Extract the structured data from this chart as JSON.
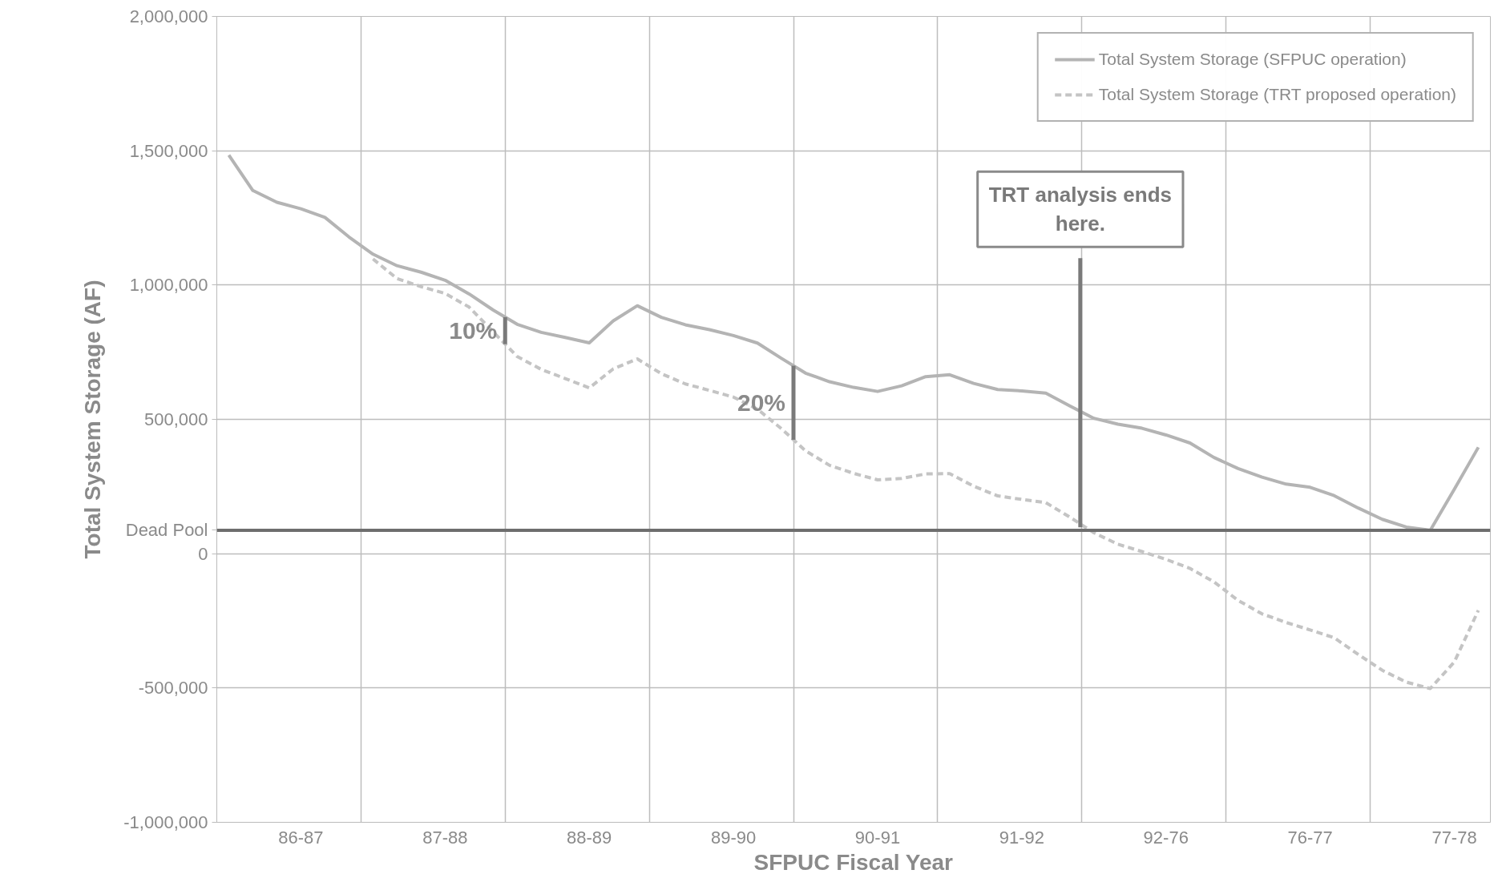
{
  "chart_data": {
    "type": "line",
    "xlabel": "SFPUC Fiscal Year",
    "ylabel": "Total System Storage (AF)",
    "categories": [
      null,
      null,
      null,
      "86-87",
      null,
      null,
      null,
      null,
      null,
      "87-88",
      null,
      null,
      null,
      null,
      null,
      "88-89",
      null,
      null,
      null,
      null,
      null,
      "89-90",
      null,
      null,
      null,
      null,
      null,
      "90-91",
      null,
      null,
      null,
      null,
      null,
      "91-92",
      null,
      null,
      null,
      null,
      null,
      "92-76",
      null,
      null,
      null,
      null,
      null,
      "76-77",
      null,
      null,
      null,
      null,
      null,
      "77-78",
      null
    ],
    "ylim": [
      -1000000,
      2000000
    ],
    "yticks": [
      {
        "value": -1000000,
        "label": "-1,000,000"
      },
      {
        "value": -500000,
        "label": "-500,000"
      },
      {
        "value": 0,
        "label": "0"
      },
      {
        "value": 500000,
        "label": "500,000"
      },
      {
        "value": 1000000,
        "label": "1,000,000"
      },
      {
        "value": 1500000,
        "label": "1,500,000"
      },
      {
        "value": 2000000,
        "label": "2,000,000"
      }
    ],
    "grid": true,
    "legend": "top right",
    "series": [
      {
        "name": "Total System Storage (SFPUC operation)",
        "color": "#b4b4b4",
        "line_style": "solid",
        "values": [
          1484000,
          1352000,
          1308000,
          1284000,
          1252000,
          1179000,
          1115000,
          1072000,
          1048000,
          1018000,
          967000,
          907000,
          854000,
          824000,
          805000,
          785000,
          867000,
          923000,
          880000,
          852000,
          834000,
          812000,
          784000,
          727000,
          672000,
          640000,
          619000,
          604000,
          625000,
          659000,
          666000,
          634000,
          611000,
          606000,
          598000,
          550000,
          504000,
          482000,
          467000,
          442000,
          412000,
          358000,
          317000,
          285000,
          259000,
          247000,
          216000,
          170000,
          128000,
          99000,
          87000,
          240000,
          396000
        ]
      },
      {
        "name": "Total System Storage (TRT proposed operation)",
        "color": "#c4c4c4",
        "line_style": "dashed",
        "values": [
          null,
          null,
          null,
          null,
          null,
          null,
          1097000,
          1024000,
          994000,
          969000,
          918000,
          826000,
          734000,
          686000,
          652000,
          617000,
          688000,
          725000,
          670000,
          632000,
          608000,
          583000,
          538000,
          465000,
          383000,
          329000,
          299000,
          275000,
          280000,
          297000,
          298000,
          251000,
          215000,
          202000,
          190000,
          136000,
          78000,
          35000,
          8000,
          -21000,
          -55000,
          -105000,
          -174000,
          -224000,
          -256000,
          -284000,
          -313000,
          -375000,
          -434000,
          -478000,
          -502000,
          -403000,
          -211000
        ]
      }
    ],
    "ref_lines": [
      {
        "axis": "y",
        "value": 87000,
        "label": "Dead Pool",
        "color": "#6e6e6e"
      }
    ],
    "annotations": [
      "10%",
      "20%",
      {
        "text": "TRT analysis ends here.",
        "y": 98000
      }
    ]
  }
}
